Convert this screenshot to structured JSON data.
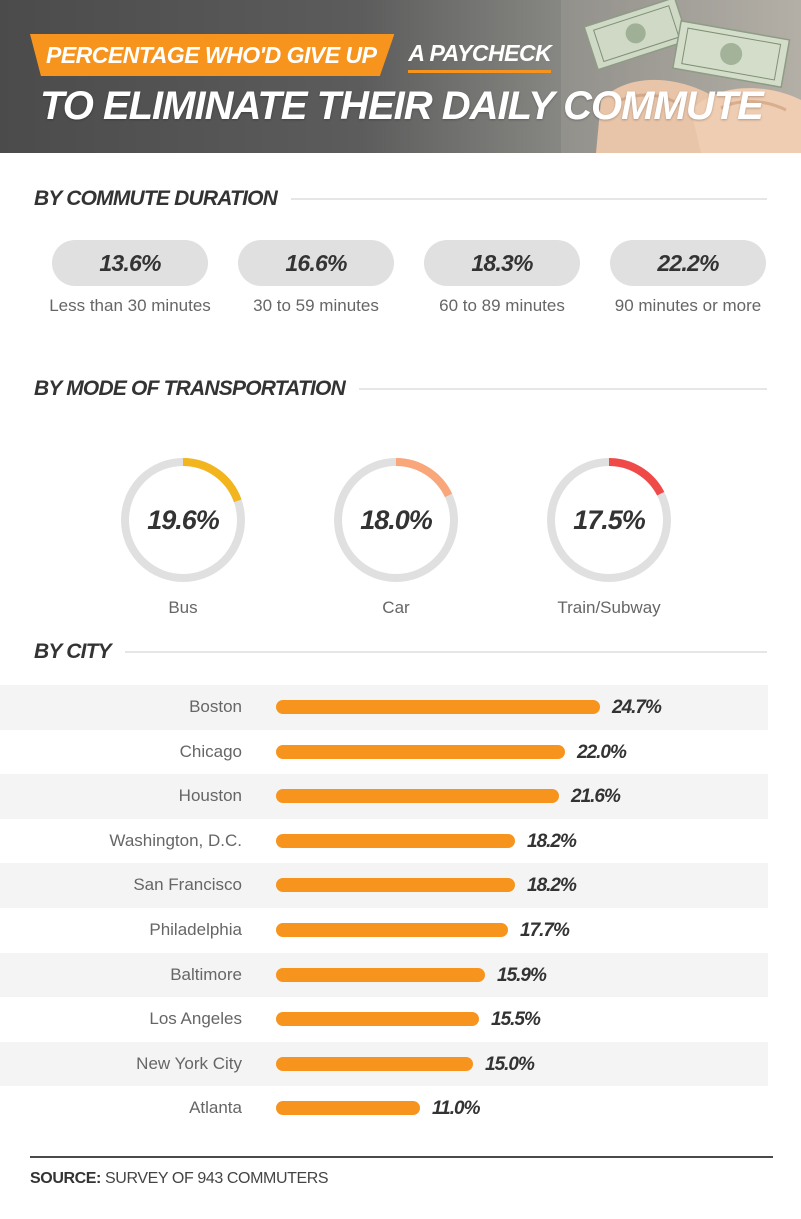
{
  "header": {
    "line1_highlight": "PERCENTAGE WHO'D GIVE UP",
    "line1_rest": "A PAYCHECK",
    "line2": "TO ELIMINATE THEIR DAILY COMMUTE"
  },
  "sections": {
    "duration": "BY COMMUTE DURATION",
    "mode": "BY MODE OF TRANSPORTATION",
    "city": "BY CITY"
  },
  "colors": {
    "accent": "#f7941d",
    "bus": "#f2b51d",
    "car": "#f9a77a",
    "train": "#ef4a48",
    "ring_track": "#e0e0e0"
  },
  "chart_data": [
    {
      "type": "table",
      "title": "BY COMMUTE DURATION",
      "categories": [
        "Less than 30 minutes",
        "30 to 59 minutes",
        "60 to 89 minutes",
        "90 minutes or more"
      ],
      "values": [
        13.6,
        16.6,
        18.3,
        22.2
      ],
      "labels": [
        "13.6%",
        "16.6%",
        "18.3%",
        "22.2%"
      ]
    },
    {
      "type": "pie",
      "title": "BY MODE OF TRANSPORTATION",
      "categories": [
        "Bus",
        "Car",
        "Train/Subway"
      ],
      "values": [
        19.6,
        18.0,
        17.5
      ],
      "labels": [
        "19.6%",
        "18.0%",
        "17.5%"
      ]
    },
    {
      "type": "bar",
      "title": "BY CITY",
      "categories": [
        "Boston",
        "Chicago",
        "Houston",
        "Washington, D.C.",
        "San Francisco",
        "Philadelphia",
        "Baltimore",
        "Los Angeles",
        "New York City",
        "Atlanta"
      ],
      "values": [
        24.7,
        22.0,
        21.6,
        18.2,
        18.2,
        17.7,
        15.9,
        15.5,
        15.0,
        11.0
      ],
      "labels": [
        "24.7%",
        "22.0%",
        "21.6%",
        "18.2%",
        "18.2%",
        "17.7%",
        "15.9%",
        "15.5%",
        "15.0%",
        "11.0%"
      ],
      "orientation": "horizontal"
    }
  ],
  "source": {
    "label": "SOURCE:",
    "text": "SURVEY OF 943 COMMUTERS"
  }
}
